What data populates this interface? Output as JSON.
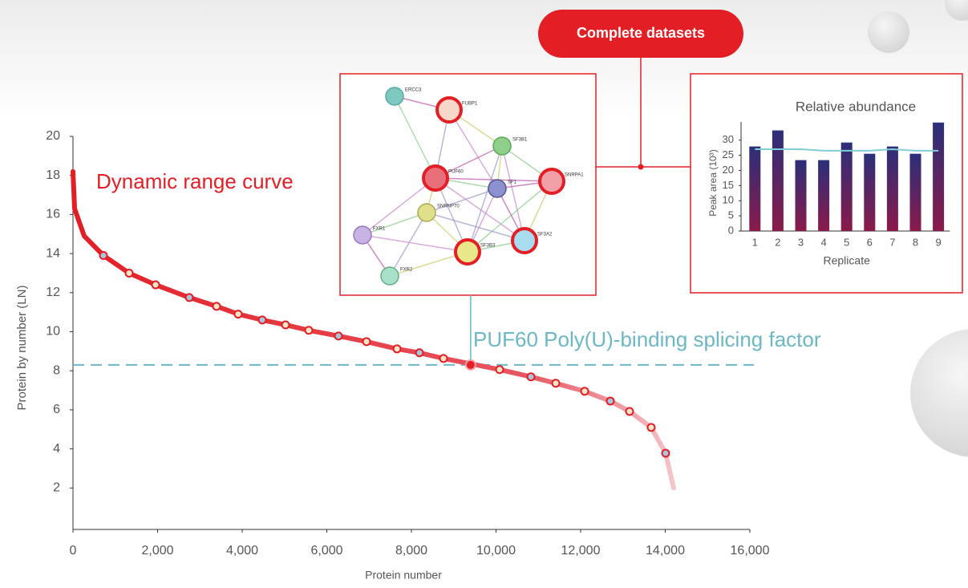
{
  "chart_data": [
    {
      "type": "line",
      "annotation": "Dynamic range curve",
      "xlabel": "Protein number",
      "ylabel": "Protein by number (LN)",
      "x": [
        0,
        38,
        265,
        720,
        1327,
        1953,
        2749,
        3393,
        3905,
        4474,
        5024,
        5573,
        6275,
        6938,
        7659,
        8190,
        8758,
        10085,
        10825,
        11412,
        12095,
        12701,
        13156,
        13668,
        14009,
        14199
      ],
      "series": [
        {
          "color": "#e31e24",
          "values": [
            18.2,
            16.3,
            14.9,
            13.9,
            13.0,
            12.4,
            11.75,
            11.3,
            10.9,
            10.6,
            10.35,
            10.07,
            9.78,
            9.49,
            9.12,
            8.92,
            8.63,
            8.06,
            7.69,
            7.36,
            6.95,
            6.45,
            5.92,
            5.1,
            3.78,
            2.0
          ]
        }
      ],
      "highlight": {
        "x": 9400,
        "y": 8.3,
        "label": "PUF60 Poly(U)-binding splicing factor",
        "color": "#6bb8c4"
      },
      "xlim": [
        0,
        16000
      ],
      "xticks": [
        0,
        {
          "value": 2000,
          "label": "2,000"
        },
        {
          "value": 4000,
          "label": "4,000"
        },
        {
          "value": 6000,
          "label": "6,000"
        },
        {
          "value": 8000,
          "label": "8,000"
        },
        {
          "value": 10000,
          "label": "10,000"
        },
        {
          "value": 12000,
          "label": "12,000"
        },
        {
          "value": 14000,
          "label": "14,000"
        },
        {
          "value": 16000,
          "label": "16,000"
        }
      ],
      "ylim": [
        0,
        20
      ],
      "yticks": [
        2,
        4,
        6,
        8,
        10,
        12,
        14,
        16,
        18,
        20
      ]
    },
    {
      "type": "bar",
      "title": "Relative abundance",
      "xlabel": "Replicate",
      "ylabel": "Peak area (10³)",
      "categories": [
        "1",
        "2",
        "3",
        "4",
        "5",
        "6",
        "7",
        "8",
        "9"
      ],
      "series": [
        {
          "type": "bar",
          "color": "#2b2f7a",
          "values": [
            27.9,
            33.2,
            23.4,
            23.4,
            29.2,
            25.5,
            27.9,
            25.5,
            35.8
          ]
        },
        {
          "type": "line",
          "color": "#7fcfd6",
          "values": [
            27,
            27,
            27,
            26.5,
            26.5,
            26.5,
            27,
            26.5,
            26.5
          ]
        }
      ],
      "ylim": [
        0,
        36
      ],
      "yticks": [
        0,
        5,
        10,
        15,
        20,
        25,
        30
      ]
    }
  ],
  "button": "Complete datasets",
  "network": {
    "nodes": [
      "ERCC3",
      "FUBP1",
      "SF3B1",
      "PUF60",
      "SNRPA1",
      "SF1",
      "SNRNP70",
      "FXR1",
      "SF3B3",
      "SF3A2",
      "FXR2"
    ]
  }
}
